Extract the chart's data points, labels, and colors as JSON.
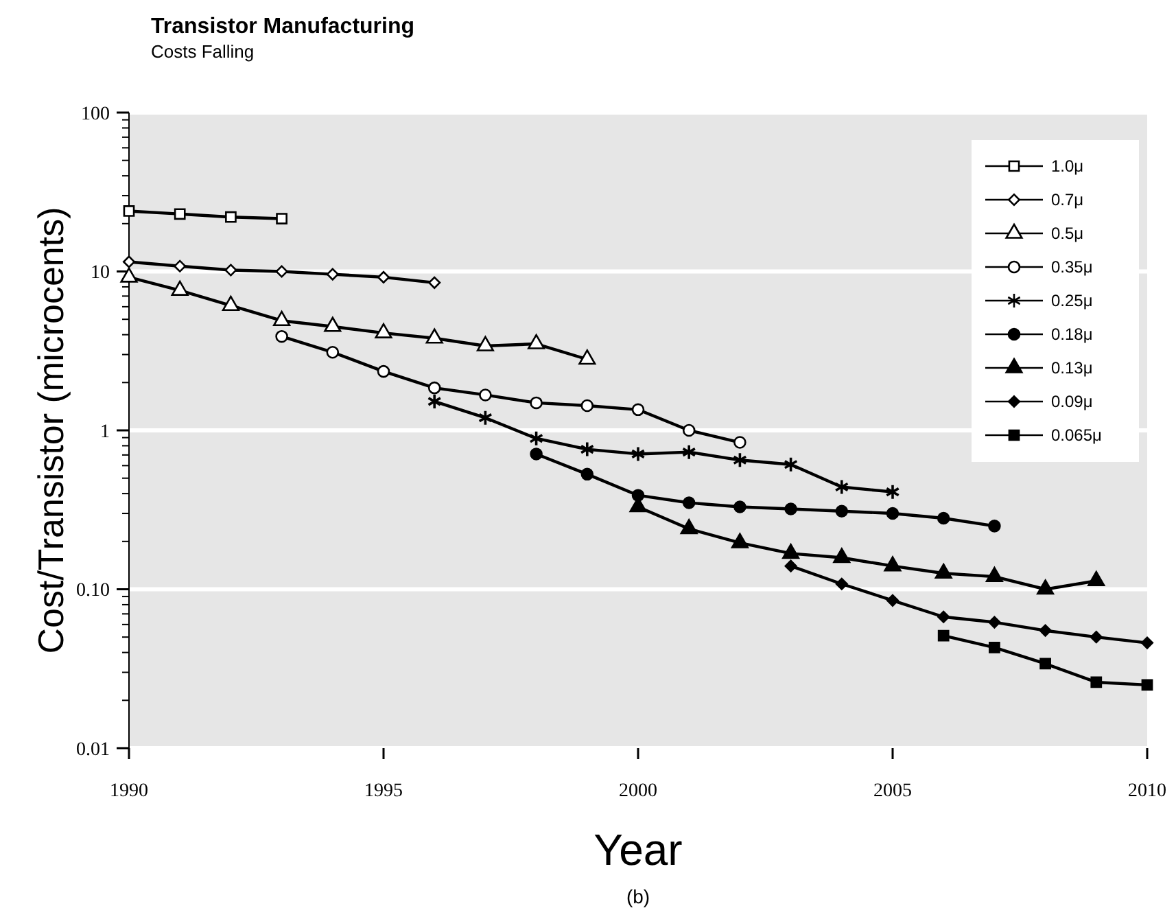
{
  "chart_data": {
    "type": "line",
    "title": "Transistor Manufacturing",
    "subtitle": "Costs Falling",
    "xlabel": "Year",
    "ylabel": "Cost/Transistor (microcents)",
    "annotations": [
      "(b)"
    ],
    "log": "y",
    "grid": "y",
    "legend": "top right",
    "line_style": "solid",
    "xlim": [
      1990,
      2010
    ],
    "xticks": [
      1990,
      1995,
      2000,
      2005,
      2010
    ],
    "ylim": [
      0.01,
      100
    ],
    "yticks": [
      0.01,
      {
        "value": 0.1,
        "label": "0.10"
      },
      1,
      10,
      100
    ],
    "series": [
      {
        "name": "1.0μ",
        "color": "#000000",
        "marker": "square",
        "colors": [
          "#ffffff",
          "#ffffff",
          "#ffffff",
          "#ffffff"
        ],
        "x": [
          1990,
          1991,
          1992,
          1993
        ],
        "values": [
          24,
          23,
          22,
          21.5
        ]
      },
      {
        "name": "0.7μ",
        "color": "#000000",
        "marker": "diamond",
        "colors": [
          "#ffffff",
          "#ffffff",
          "#ffffff",
          "#ffffff",
          "#ffffff",
          "#ffffff",
          "#ffffff"
        ],
        "x": [
          1990,
          1991,
          1992,
          1993,
          1994,
          1995,
          1996
        ],
        "values": [
          11.5,
          10.8,
          10.2,
          10,
          9.6,
          9.2,
          8.5
        ]
      },
      {
        "name": "0.5μ",
        "color": "#000000",
        "marker": "triangle",
        "colors": [
          "#ffffff",
          "#ffffff",
          "#ffffff",
          "#ffffff",
          "#ffffff",
          "#ffffff",
          "#ffffff",
          "#ffffff",
          "#ffffff",
          "#ffffff"
        ],
        "x": [
          1990,
          1991,
          1992,
          1993,
          1994,
          1995,
          1996,
          1997,
          1998,
          1999
        ],
        "values": [
          9.2,
          7.6,
          6.1,
          4.9,
          4.5,
          4.1,
          3.8,
          3.4,
          3.5,
          2.8
        ]
      },
      {
        "name": "0.35μ",
        "color": "#000000",
        "marker": "circle",
        "colors": [
          "#ffffff",
          "#ffffff",
          "#ffffff",
          "#ffffff",
          "#ffffff",
          "#ffffff",
          "#ffffff",
          "#ffffff",
          "#ffffff",
          "#ffffff"
        ],
        "x": [
          1993,
          1994,
          1995,
          1996,
          1997,
          1998,
          1999,
          2000,
          2001,
          2002
        ],
        "values": [
          3.9,
          3.1,
          2.35,
          1.85,
          1.67,
          1.49,
          1.43,
          1.35,
          1.0,
          0.84
        ]
      },
      {
        "name": "0.25μ",
        "color": "#000000",
        "marker": "cross",
        "x": [
          1996,
          1997,
          1998,
          1999,
          2000,
          2001,
          2002,
          2003,
          2004,
          2005
        ],
        "values": [
          1.52,
          1.2,
          0.89,
          0.76,
          0.71,
          0.73,
          0.65,
          0.61,
          0.44,
          0.41
        ]
      },
      {
        "name": "0.18μ",
        "color": "#000000",
        "marker": "circle",
        "x": [
          1998,
          1999,
          2000,
          2001,
          2002,
          2003,
          2004,
          2005,
          2006,
          2007
        ],
        "values": [
          0.71,
          0.53,
          0.39,
          0.35,
          0.33,
          0.32,
          0.31,
          0.3,
          0.28,
          0.25
        ]
      },
      {
        "name": "0.13μ",
        "color": "#000000",
        "marker": "triangle",
        "x": [
          2000,
          2001,
          2002,
          2003,
          2004,
          2005,
          2006,
          2007,
          2008,
          2009
        ],
        "values": [
          0.33,
          0.24,
          0.196,
          0.168,
          0.158,
          0.14,
          0.126,
          0.12,
          0.1,
          0.113
        ]
      },
      {
        "name": "0.09μ",
        "color": "#000000",
        "marker": "diamond",
        "x": [
          2003,
          2004,
          2005,
          2006,
          2007,
          2008,
          2009,
          2010
        ],
        "values": [
          0.14,
          0.108,
          0.085,
          0.067,
          0.062,
          0.055,
          0.05,
          0.046
        ]
      },
      {
        "name": "0.065μ",
        "color": "#000000",
        "marker": "square",
        "x": [
          2006,
          2007,
          2008,
          2009,
          2010
        ],
        "values": [
          0.051,
          0.043,
          0.034,
          0.026,
          0.025
        ]
      }
    ]
  }
}
